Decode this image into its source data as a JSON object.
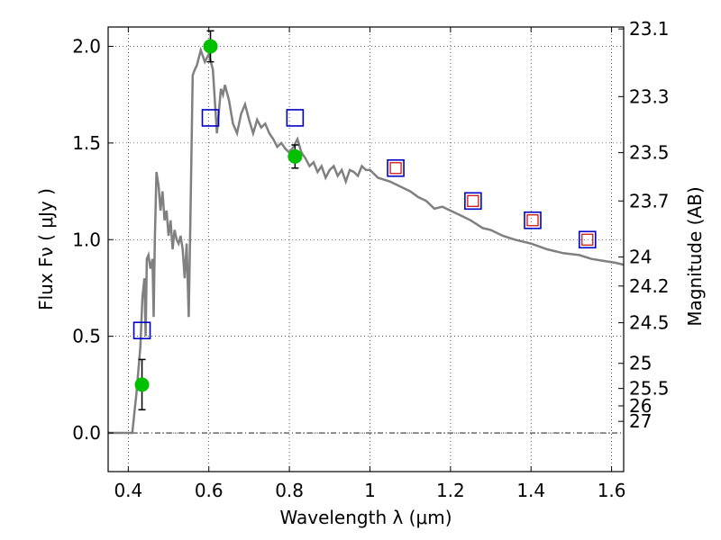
{
  "chart_data": {
    "type": "scatter",
    "xlabel": "Wavelength  λ (μm)",
    "ylabel": "Flux  Fν  ( μJy )",
    "ylabel_right": "Magnitude (AB)",
    "xlim": [
      0.35,
      1.63
    ],
    "ylim": [
      -0.2,
      2.1
    ],
    "grid": true,
    "x_ticks": [
      0.4,
      0.6,
      0.8,
      1.0,
      1.2,
      1.4,
      1.6
    ],
    "x_tick_labels": [
      "0.4",
      "0.6",
      "0.8",
      "1",
      "1.2",
      "1.4",
      "1.6"
    ],
    "y_ticks": [
      0.0,
      0.5,
      1.0,
      1.5,
      2.0
    ],
    "y_tick_labels": [
      "0.0",
      "0.5",
      "1.0",
      "1.5",
      "2.0"
    ],
    "right_ticks": [
      {
        "label": "23.1",
        "flux": 2.09
      },
      {
        "label": "23.3",
        "flux": 1.74
      },
      {
        "label": "23.5",
        "flux": 1.45
      },
      {
        "label": "23.7",
        "flux": 1.2
      },
      {
        "label": "24",
        "flux": 0.91
      },
      {
        "label": "24.2",
        "flux": 0.76
      },
      {
        "label": "24.5",
        "flux": 0.57
      },
      {
        "label": "25",
        "flux": 0.36
      },
      {
        "label": "25.5",
        "flux": 0.23
      },
      {
        "label": "26",
        "flux": 0.14
      },
      {
        "label": "27",
        "flux": 0.06
      }
    ],
    "zero_line": 0.0,
    "colors": {
      "model": "#808080",
      "observed": "#00c000",
      "model_box": "#0000cc",
      "inner_box": "#cc0000",
      "errorbar": "#000000"
    },
    "series": [
      {
        "kind": "line",
        "x": [
          0.35,
          0.41,
          0.415,
          0.42,
          0.43,
          0.435,
          0.44,
          0.443,
          0.446,
          0.45,
          0.455,
          0.46,
          0.463,
          0.466,
          0.47,
          0.475,
          0.48,
          0.485,
          0.49,
          0.495,
          0.5,
          0.505,
          0.51,
          0.515,
          0.52,
          0.525,
          0.53,
          0.535,
          0.54,
          0.545,
          0.55,
          0.555,
          0.56,
          0.565,
          0.57,
          0.58,
          0.59,
          0.6,
          0.61,
          0.62,
          0.63,
          0.635,
          0.64,
          0.65,
          0.66,
          0.67,
          0.68,
          0.69,
          0.7,
          0.71,
          0.72,
          0.73,
          0.74,
          0.75,
          0.76,
          0.77,
          0.78,
          0.79,
          0.8,
          0.81,
          0.82,
          0.83,
          0.84,
          0.85,
          0.86,
          0.87,
          0.88,
          0.89,
          0.9,
          0.91,
          0.92,
          0.93,
          0.94,
          0.95,
          0.96,
          0.97,
          0.98,
          0.99,
          1.0,
          1.02,
          1.05,
          1.08,
          1.1,
          1.12,
          1.14,
          1.16,
          1.18,
          1.2,
          1.22,
          1.25,
          1.28,
          1.3,
          1.33,
          1.36,
          1.4,
          1.44,
          1.48,
          1.52,
          1.55,
          1.58,
          1.61,
          1.63
        ],
        "y": [
          0.0,
          0.0,
          0.1,
          0.2,
          0.45,
          0.7,
          0.8,
          0.5,
          0.9,
          0.92,
          0.85,
          0.9,
          0.6,
          1.0,
          1.35,
          1.28,
          1.15,
          1.25,
          1.1,
          1.15,
          1.02,
          1.1,
          0.95,
          1.05,
          1.0,
          0.98,
          1.02,
          0.95,
          0.8,
          0.98,
          0.6,
          1.2,
          1.85,
          1.88,
          1.9,
          1.98,
          1.92,
          1.96,
          1.88,
          1.55,
          1.78,
          1.75,
          1.8,
          1.72,
          1.6,
          1.55,
          1.65,
          1.7,
          1.62,
          1.55,
          1.62,
          1.58,
          1.6,
          1.55,
          1.52,
          1.48,
          1.5,
          1.47,
          1.45,
          1.48,
          1.52,
          1.45,
          1.42,
          1.38,
          1.4,
          1.35,
          1.38,
          1.32,
          1.36,
          1.38,
          1.33,
          1.36,
          1.3,
          1.36,
          1.35,
          1.33,
          1.38,
          1.36,
          1.36,
          1.32,
          1.3,
          1.27,
          1.25,
          1.22,
          1.2,
          1.16,
          1.17,
          1.15,
          1.13,
          1.1,
          1.06,
          1.05,
          1.02,
          1.0,
          0.98,
          0.95,
          0.93,
          0.92,
          0.9,
          0.89,
          0.88,
          0.87
        ]
      },
      {
        "kind": "observed",
        "x": [
          0.434,
          0.604,
          0.814
        ],
        "y": [
          0.25,
          2.0,
          1.43
        ],
        "err": [
          0.13,
          0.08,
          0.06
        ]
      },
      {
        "kind": "model_box",
        "x": [
          0.434,
          0.604,
          0.814,
          1.064,
          1.256,
          1.404,
          1.54
        ],
        "y": [
          0.53,
          1.63,
          1.63,
          1.37,
          1.2,
          1.1,
          1.0
        ]
      },
      {
        "kind": "inner_box",
        "x": [
          1.064,
          1.256,
          1.404,
          1.54
        ],
        "y": [
          1.37,
          1.2,
          1.1,
          1.0
        ]
      }
    ]
  }
}
